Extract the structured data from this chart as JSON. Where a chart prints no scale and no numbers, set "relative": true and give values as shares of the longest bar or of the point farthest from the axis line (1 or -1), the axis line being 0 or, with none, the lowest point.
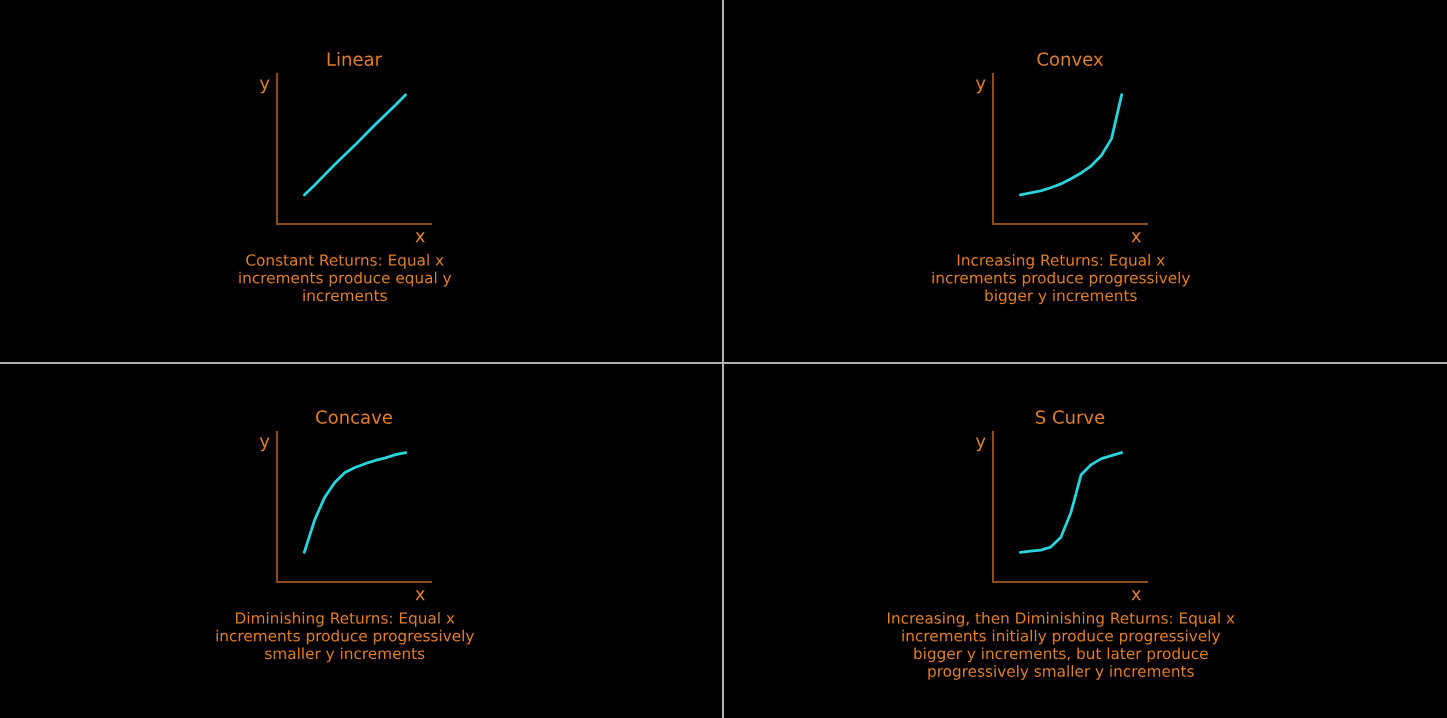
{
  "chart_data": [
    {
      "type": "line",
      "title": "Linear",
      "xlabel": "x",
      "ylabel": "y",
      "relative": true,
      "annotations": [
        "Constant Returns: Equal x\nincrements produce equal y\nincrements"
      ],
      "categories": [
        null,
        null,
        null,
        null,
        null,
        null,
        null,
        null,
        null,
        null,
        null
      ],
      "series": [
        {
          "color": "#2ad4dc",
          "values": [
            0.225,
            0.3,
            0.38,
            0.46,
            0.535,
            0.61,
            0.69,
            0.77,
            0.845,
            0.92,
            1.0
          ]
        }
      ]
    },
    {
      "type": "line",
      "title": "Convex",
      "xlabel": "x",
      "ylabel": "y",
      "relative": true,
      "annotations": [
        "Increasing Returns: Equal x\nincrements produce progressively\nbigger y increments"
      ],
      "categories": [
        null,
        null,
        null,
        null,
        null,
        null,
        null,
        null,
        null,
        null,
        null
      ],
      "series": [
        {
          "color": "#2ad4dc",
          "values": [
            0.225,
            0.24,
            0.256,
            0.28,
            0.31,
            0.35,
            0.395,
            0.45,
            0.53,
            0.66,
            1.0
          ]
        }
      ]
    },
    {
      "type": "line",
      "title": "Concave",
      "xlabel": "x",
      "ylabel": "y",
      "relative": true,
      "annotations": [
        "Diminishing Returns: Equal x\nincrements produce progressively\nsmaller y increments"
      ],
      "categories": [
        null,
        null,
        null,
        null,
        null,
        null,
        null,
        null,
        null,
        null,
        null
      ],
      "series": [
        {
          "color": "#2ad4dc",
          "values": [
            0.23,
            0.477,
            0.654,
            0.77,
            0.846,
            0.885,
            0.915,
            0.94,
            0.96,
            0.985,
            1.0
          ]
        }
      ]
    },
    {
      "type": "line",
      "title": "S Curve",
      "xlabel": "x",
      "ylabel": "y",
      "relative": true,
      "annotations": [
        "Increasing, then Diminishing Returns: Equal x\nincrements initially produce progressively\nbigger y increments, but later produce\nprogressively smaller y increments"
      ],
      "categories": [
        null,
        null,
        null,
        null,
        null,
        null,
        null,
        null,
        null,
        null,
        null
      ],
      "series": [
        {
          "color": "#2ad4dc",
          "values": [
            0.23,
            0.238,
            0.246,
            0.27,
            0.346,
            0.54,
            0.83,
            0.908,
            0.954,
            0.977,
            1.0
          ]
        }
      ]
    }
  ]
}
